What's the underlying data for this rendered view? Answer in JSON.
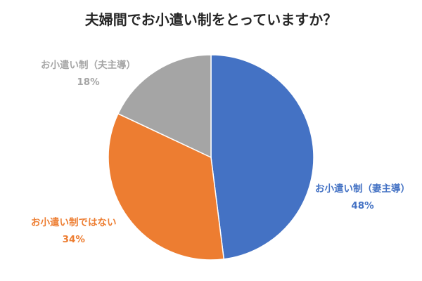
{
  "chart_data": {
    "type": "pie",
    "title": "夫婦間でお小遣い制をとっていますか？",
    "categories": [
      "お小遣い制（妻主導）",
      "お小遣い制ではない",
      "お小遣い制（夫主導）"
    ],
    "values": [
      48,
      34,
      18
    ],
    "labels": [
      "48%",
      "34%",
      "18%"
    ],
    "colors": [
      "#4472C4",
      "#ED7D31",
      "#A5A5A5"
    ],
    "start": "12 o'clock",
    "direction": "clockwise",
    "legend": "none",
    "label_placement": "outside"
  }
}
